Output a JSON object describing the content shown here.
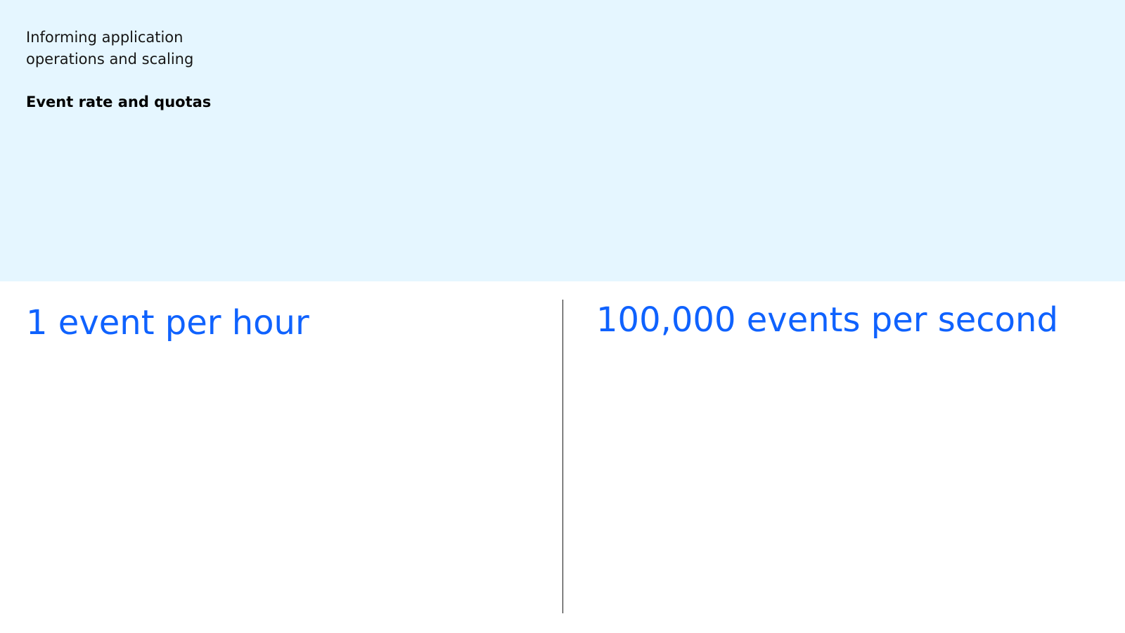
{
  "header": {
    "subtitle": "Informing application operations and scaling",
    "section_title": "Event rate and quotas",
    "background_color": "#e5f6ff"
  },
  "comparison": {
    "left": {
      "label": "1 event per hour"
    },
    "right": {
      "label": "100,000 events per second"
    },
    "accent_color": "#0f62fe"
  }
}
